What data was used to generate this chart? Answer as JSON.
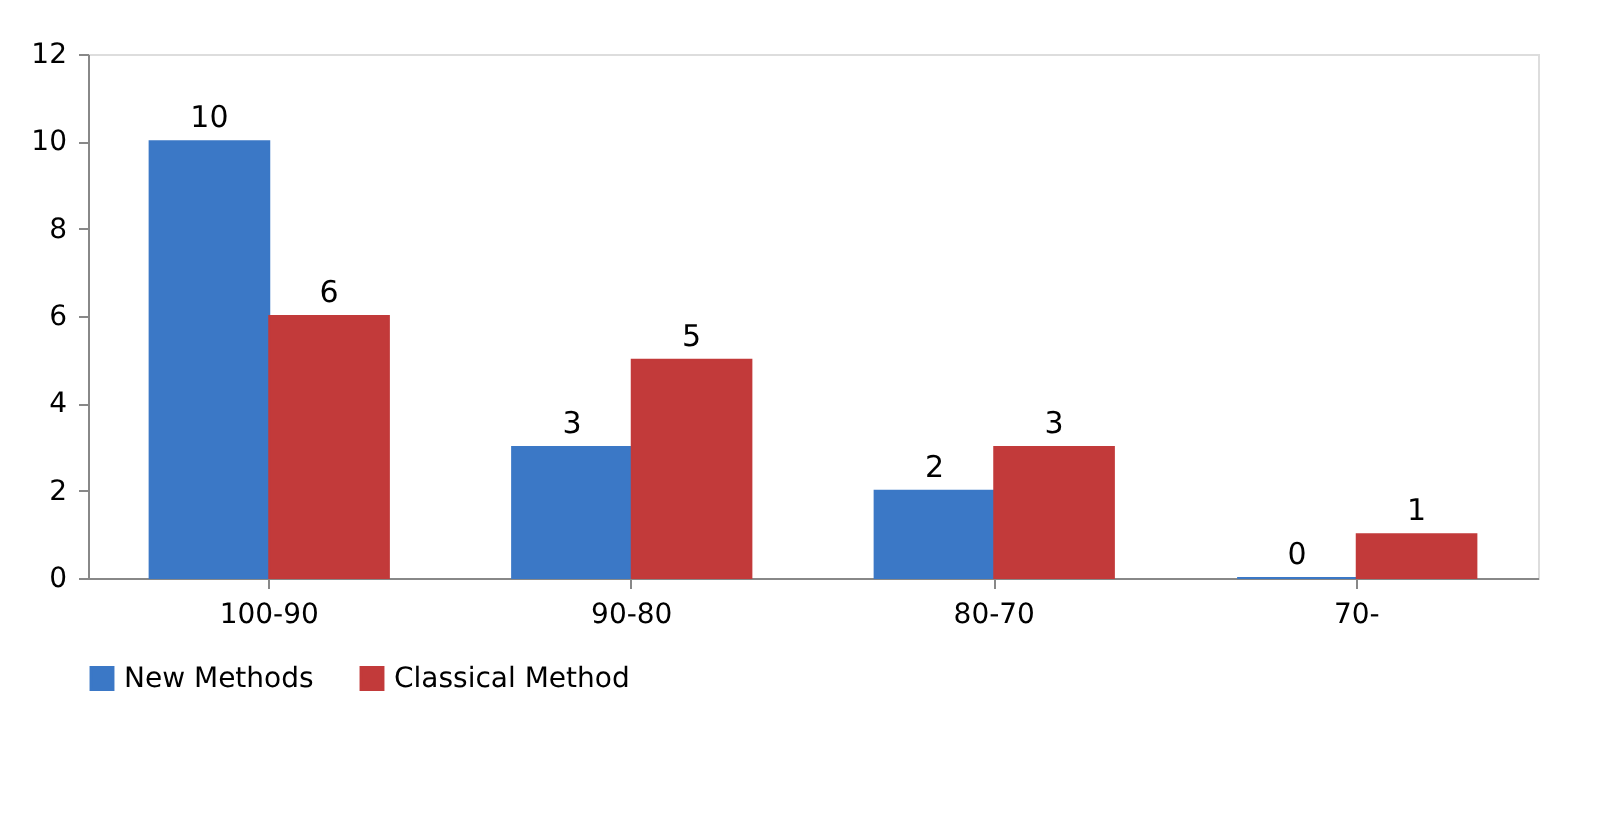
{
  "chart_data": {
    "type": "bar",
    "categories": [
      "100-90",
      "90-80",
      "80-70",
      "70-"
    ],
    "series": [
      {
        "name": "New Methods",
        "color": "#3b78c6",
        "values": [
          10,
          3,
          2,
          0
        ]
      },
      {
        "name": "Classical Method",
        "color": "#c23a3a",
        "values": [
          6,
          5,
          3,
          1
        ]
      }
    ],
    "ylim": [
      0,
      12
    ],
    "yticks": [
      0,
      2,
      4,
      6,
      8,
      10,
      12
    ],
    "grid": false,
    "legend": "bottom",
    "data_labels": true
  }
}
